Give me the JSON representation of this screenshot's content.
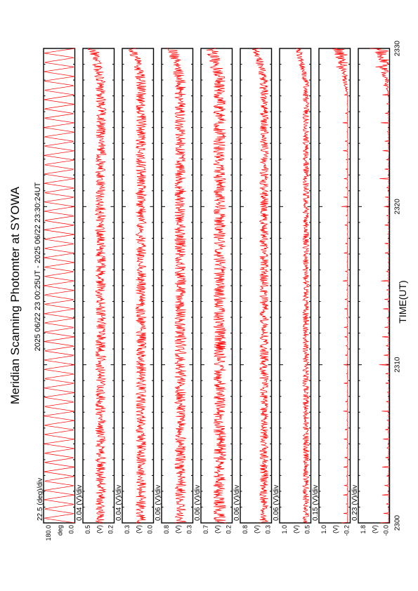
{
  "title": "Meridian Scanning Photomter at SYOWA",
  "time_range_text": "2025 06/22 23 00:25UT - 2025 06/22 23:30:24UT",
  "colors": {
    "trace": "#ff0000",
    "axes": "#000000",
    "background": "#ffffff"
  },
  "chart_data": {
    "type": "line",
    "orientation": "rotated-90",
    "xlabel": "TIME(UT)",
    "x_ticks": [
      "2300",
      "2310",
      "2320",
      "2330"
    ],
    "xlim": [
      0,
      30
    ],
    "x_unit": "minutes after 2300 UT",
    "panels": [
      {
        "scale": "22.5 (deg)/div",
        "ylim": [
          0.0,
          180.0
        ],
        "tick_labels": [
          "0.0",
          "deg",
          "180.0"
        ],
        "pattern": "sawtooth",
        "base": 0.0,
        "amplitude": 180.0
      },
      {
        "scale": "0.04 (V)/div",
        "ylim": [
          0.2,
          0.5
        ],
        "tick_labels": [
          "0.2",
          "(V)",
          "0.5"
        ],
        "pattern": "noise",
        "base": 0.33,
        "amplitude": 0.05
      },
      {
        "scale": "0.04 (V)/div",
        "ylim": [
          0.0,
          0.3
        ],
        "tick_labels": [
          "0.0",
          "(V)",
          "0.3"
        ],
        "pattern": "noise",
        "base": 0.12,
        "amplitude": 0.05
      },
      {
        "scale": "0.06 (V)/div",
        "ylim": [
          0.3,
          0.8
        ],
        "tick_labels": [
          "0.3",
          "(V)",
          "0.8"
        ],
        "pattern": "noise",
        "base": 0.5,
        "amplitude": 0.09
      },
      {
        "scale": "0.06 (V)/div",
        "ylim": [
          0.2,
          0.7
        ],
        "tick_labels": [
          "0.2",
          "(V)",
          "0.7"
        ],
        "pattern": "noise",
        "base": 0.4,
        "amplitude": 0.1
      },
      {
        "scale": "0.06 (V)/div",
        "ylim": [
          0.3,
          0.8
        ],
        "tick_labels": [
          "0.3",
          "(V)",
          "0.8"
        ],
        "pattern": "noise",
        "base": 0.42,
        "amplitude": 0.07
      },
      {
        "scale": "0.06 (V)/div",
        "ylim": [
          0.5,
          1.0
        ],
        "tick_labels": [
          "0.5",
          "(V)",
          "1.0"
        ],
        "pattern": "noise",
        "base": 0.58,
        "amplitude": 0.05
      },
      {
        "scale": "0.15 (V)/div",
        "ylim": [
          -0.2,
          1.0
        ],
        "tick_labels": [
          "-0.2",
          "(V)",
          "1.0"
        ],
        "pattern": "spikes",
        "base": -0.1,
        "amplitude": 0.2
      },
      {
        "scale": "0.23 (V)/div",
        "ylim": [
          -0.0,
          1.8
        ],
        "tick_labels": [
          "-0.0",
          "(V)",
          "1.8"
        ],
        "pattern": "spikes",
        "base": 0.05,
        "amplitude": 0.45
      }
    ]
  }
}
